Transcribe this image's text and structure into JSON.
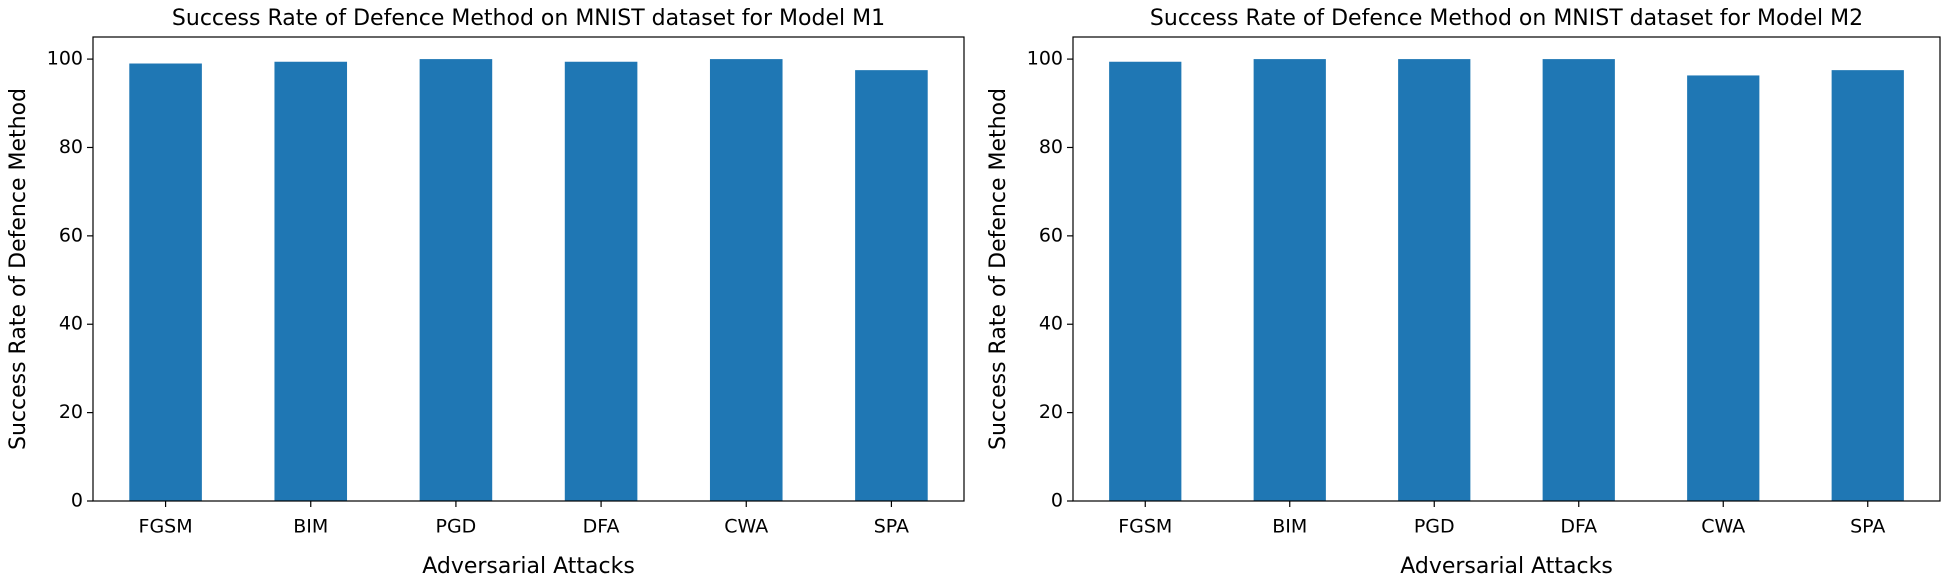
{
  "chart_data": [
    {
      "type": "bar",
      "title": "Success Rate of Defence Method on MNIST dataset for Model M1",
      "xlabel": "Adversarial Attacks",
      "ylabel": "Success Rate of Defence Method",
      "categories": [
        "FGSM",
        "BIM",
        "PGD",
        "DFA",
        "CWA",
        "SPA"
      ],
      "values": [
        99,
        99.4,
        100,
        99.4,
        100,
        97.5
      ],
      "color": "#1f77b4",
      "ylim": [
        0,
        105
      ],
      "yticks": [
        0,
        20,
        40,
        60,
        80,
        100
      ]
    },
    {
      "type": "bar",
      "title": "Success Rate of Defence Method on MNIST dataset for Model M2",
      "xlabel": "Adversarial Attacks",
      "ylabel": "Success Rate of Defence Method",
      "categories": [
        "FGSM",
        "BIM",
        "PGD",
        "DFA",
        "CWA",
        "SPA"
      ],
      "values": [
        99.4,
        100,
        100,
        100,
        96.3,
        97.5
      ],
      "color": "#1f77b4",
      "ylim": [
        0,
        105
      ],
      "yticks": [
        0,
        20,
        40,
        60,
        80,
        100
      ]
    }
  ]
}
